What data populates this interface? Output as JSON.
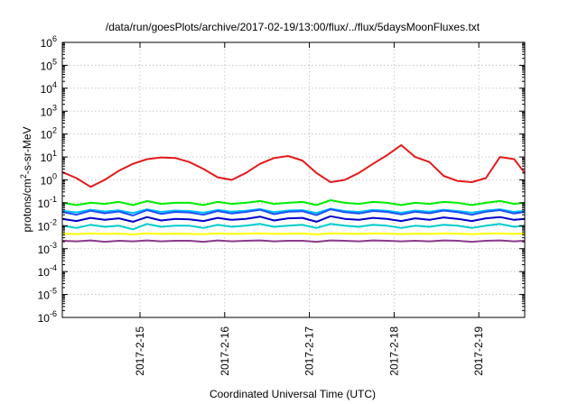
{
  "chart_data": {
    "type": "line",
    "title": "/data/run/goesPlots/archive/2017-02-19/13:00/flux/../flux/5daysMoonFluxes.txt",
    "xlabel": "Coordinated Universal Time (UTC)",
    "ylabel_prefix": "protons/cm",
    "ylabel_sup": "2",
    "ylabel_suffix": "-s-sr-MeV",
    "y_scale": "log",
    "ylim_exp": [
      -6,
      6
    ],
    "y_tick_base": "10",
    "y_tick_exponents": [
      "-6",
      "-5",
      "-4",
      "-3",
      "-2",
      "-1",
      "0",
      "1",
      "2",
      "3",
      "4",
      "5",
      "6"
    ],
    "xlim": [
      "2017-02-14 02:00",
      "2017-02-19 13:00"
    ],
    "x_ticks": [
      "2017-2-15",
      "2017-2-16",
      "2017-2-17",
      "2017-2-18",
      "2017-2-19"
    ],
    "grid": true,
    "x": [
      "2017-02-14 02:00",
      "2017-02-14 06:00",
      "2017-02-14 10:00",
      "2017-02-14 14:00",
      "2017-02-14 18:00",
      "2017-02-14 22:00",
      "2017-02-15 02:00",
      "2017-02-15 06:00",
      "2017-02-15 10:00",
      "2017-02-15 14:00",
      "2017-02-15 18:00",
      "2017-02-15 22:00",
      "2017-02-16 02:00",
      "2017-02-16 06:00",
      "2017-02-16 10:00",
      "2017-02-16 14:00",
      "2017-02-16 18:00",
      "2017-02-16 22:00",
      "2017-02-17 02:00",
      "2017-02-17 06:00",
      "2017-02-17 10:00",
      "2017-02-17 14:00",
      "2017-02-17 18:00",
      "2017-02-17 22:00",
      "2017-02-18 02:00",
      "2017-02-18 06:00",
      "2017-02-18 10:00",
      "2017-02-18 14:00",
      "2017-02-18 18:00",
      "2017-02-18 22:00",
      "2017-02-19 02:00",
      "2017-02-19 06:00",
      "2017-02-19 10:00",
      "2017-02-19 13:00"
    ],
    "series": [
      {
        "color": "#e41a1c",
        "values": [
          2.2,
          1.2,
          0.5,
          1.0,
          2.5,
          5.0,
          8.0,
          9.5,
          9.0,
          6.0,
          3.0,
          1.3,
          1.0,
          2.0,
          5.0,
          9.0,
          11.0,
          7.0,
          2.0,
          0.8,
          1.0,
          2.0,
          5.0,
          12.0,
          33.0,
          10.0,
          6.0,
          1.5,
          0.9,
          0.8,
          1.2,
          10.0,
          8.0,
          2.0
        ]
      },
      {
        "color": "#00ee00",
        "values": [
          0.1,
          0.08,
          0.1,
          0.09,
          0.11,
          0.08,
          0.12,
          0.09,
          0.1,
          0.1,
          0.08,
          0.11,
          0.09,
          0.1,
          0.12,
          0.09,
          0.1,
          0.11,
          0.08,
          0.13,
          0.1,
          0.09,
          0.11,
          0.1,
          0.08,
          0.1,
          0.09,
          0.11,
          0.1,
          0.08,
          0.1,
          0.12,
          0.09,
          0.1
        ]
      },
      {
        "color": "#00bfff",
        "values": [
          0.045,
          0.038,
          0.05,
          0.042,
          0.047,
          0.036,
          0.052,
          0.04,
          0.046,
          0.044,
          0.037,
          0.049,
          0.041,
          0.045,
          0.053,
          0.039,
          0.046,
          0.048,
          0.036,
          0.055,
          0.044,
          0.04,
          0.049,
          0.045,
          0.037,
          0.046,
          0.041,
          0.05,
          0.044,
          0.037,
          0.046,
          0.052,
          0.04,
          0.045
        ]
      },
      {
        "color": "#1e4fff",
        "values": [
          0.04,
          0.03,
          0.045,
          0.035,
          0.042,
          0.028,
          0.048,
          0.033,
          0.04,
          0.038,
          0.03,
          0.044,
          0.034,
          0.04,
          0.05,
          0.032,
          0.041,
          0.043,
          0.029,
          0.052,
          0.039,
          0.034,
          0.044,
          0.04,
          0.031,
          0.041,
          0.035,
          0.046,
          0.039,
          0.03,
          0.041,
          0.048,
          0.034,
          0.04
        ]
      },
      {
        "color": "#0000cd",
        "values": [
          0.02,
          0.016,
          0.022,
          0.018,
          0.021,
          0.015,
          0.024,
          0.017,
          0.02,
          0.019,
          0.016,
          0.022,
          0.018,
          0.02,
          0.025,
          0.017,
          0.021,
          0.022,
          0.015,
          0.026,
          0.02,
          0.018,
          0.022,
          0.02,
          0.016,
          0.021,
          0.018,
          0.023,
          0.02,
          0.016,
          0.021,
          0.024,
          0.018,
          0.02
        ]
      },
      {
        "color": "#00cdcd",
        "values": [
          0.01,
          0.008,
          0.011,
          0.009,
          0.01,
          0.007,
          0.012,
          0.009,
          0.01,
          0.01,
          0.008,
          0.011,
          0.009,
          0.01,
          0.012,
          0.009,
          0.01,
          0.011,
          0.008,
          0.012,
          0.01,
          0.009,
          0.011,
          0.01,
          0.008,
          0.01,
          0.009,
          0.011,
          0.01,
          0.008,
          0.01,
          0.012,
          0.009,
          0.01
        ]
      },
      {
        "color": "#ffff00",
        "values": [
          0.0045,
          0.0043,
          0.0046,
          0.0044,
          0.0045,
          0.0042,
          0.0046,
          0.0044,
          0.0045,
          0.0044,
          0.0043,
          0.0046,
          0.0044,
          0.0045,
          0.0047,
          0.0044,
          0.0045,
          0.0046,
          0.0042,
          0.0047,
          0.0045,
          0.0044,
          0.0046,
          0.0045,
          0.0043,
          0.0045,
          0.0044,
          0.0046,
          0.0045,
          0.0043,
          0.0045,
          0.0046,
          0.0044,
          0.0045
        ]
      },
      {
        "color": "#8b3a8b",
        "values": [
          0.0022,
          0.0021,
          0.0023,
          0.002,
          0.0022,
          0.0021,
          0.0023,
          0.0021,
          0.0022,
          0.0022,
          0.002,
          0.0023,
          0.0021,
          0.0022,
          0.0023,
          0.0021,
          0.0022,
          0.0022,
          0.002,
          0.0023,
          0.0022,
          0.0021,
          0.0023,
          0.0022,
          0.0021,
          0.0022,
          0.0021,
          0.0023,
          0.0022,
          0.002,
          0.0022,
          0.0023,
          0.0021,
          0.0022
        ]
      }
    ]
  }
}
